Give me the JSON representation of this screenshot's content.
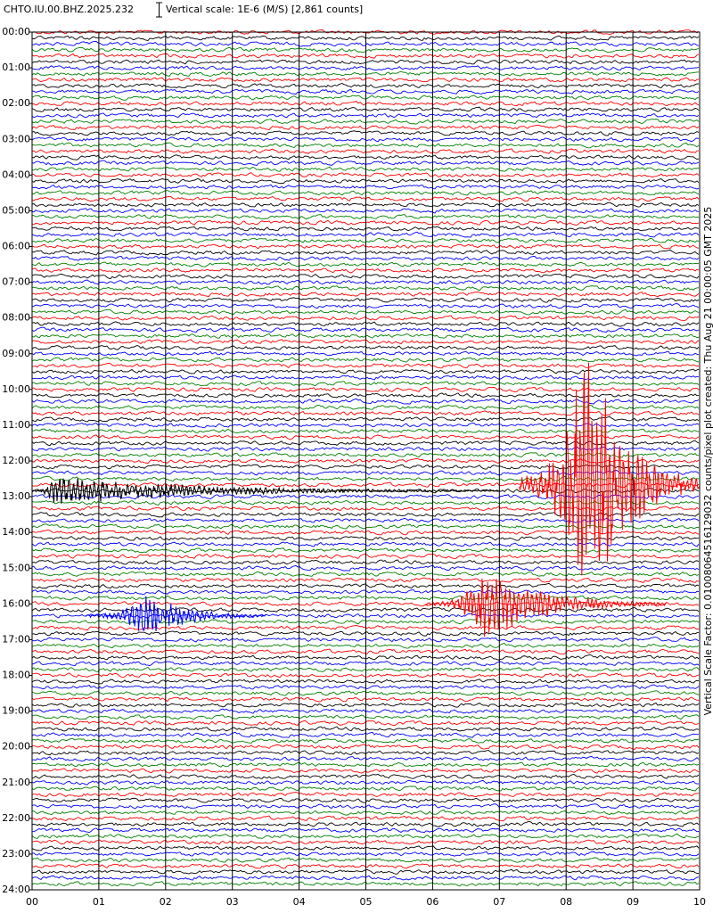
{
  "chart_data": {
    "type": "helicorder",
    "title": "CHTO.IU.00.BHZ.2025.232",
    "subtitle": "Vertical scale: 1E-6 (M/S) [2,861 counts]",
    "side_label": "Vertical Scale Factor: 0.01008064516129032 counts/pixel plot created: Thu Aug 21 00:00:05 GMT 2025",
    "xlim": [
      0,
      10
    ],
    "xticks": [
      {
        "value": 0,
        "label": "00"
      },
      {
        "value": 1,
        "label": "01"
      },
      {
        "value": 2,
        "label": "02"
      },
      {
        "value": 3,
        "label": "03"
      },
      {
        "value": 4,
        "label": "04"
      },
      {
        "value": 5,
        "label": "05"
      },
      {
        "value": 6,
        "label": "06"
      },
      {
        "value": 7,
        "label": "07"
      },
      {
        "value": 8,
        "label": "08"
      },
      {
        "value": 9,
        "label": "09"
      },
      {
        "value": 10,
        "label": "10"
      }
    ],
    "ylim": [
      0,
      24
    ],
    "yticks": [
      {
        "value": 0,
        "label": "00:00"
      },
      {
        "value": 1,
        "label": "01:00"
      },
      {
        "value": 2,
        "label": "02:00"
      },
      {
        "value": 3,
        "label": "03:00"
      },
      {
        "value": 4,
        "label": "04:00"
      },
      {
        "value": 5,
        "label": "05:00"
      },
      {
        "value": 6,
        "label": "06:00"
      },
      {
        "value": 7,
        "label": "07:00"
      },
      {
        "value": 8,
        "label": "08:00"
      },
      {
        "value": 9,
        "label": "09:00"
      },
      {
        "value": 10,
        "label": "10:00"
      },
      {
        "value": 11,
        "label": "11:00"
      },
      {
        "value": 12,
        "label": "12:00"
      },
      {
        "value": 13,
        "label": "13:00"
      },
      {
        "value": 14,
        "label": "14:00"
      },
      {
        "value": 15,
        "label": "15:00"
      },
      {
        "value": 16,
        "label": "16:00"
      },
      {
        "value": 17,
        "label": "17:00"
      },
      {
        "value": 18,
        "label": "18:00"
      },
      {
        "value": 19,
        "label": "19:00"
      },
      {
        "value": 20,
        "label": "20:00"
      },
      {
        "value": 21,
        "label": "21:00"
      },
      {
        "value": 22,
        "label": "22:00"
      },
      {
        "value": 23,
        "label": "23:00"
      },
      {
        "value": 24,
        "label": "24:00"
      }
    ],
    "colors": [
      "#ff0000",
      "#000000",
      "#0000ff",
      "#008000"
    ],
    "grid": true,
    "events": [
      {
        "row": 76,
        "start": 7.3,
        "peak": 8.3,
        "end": 10,
        "amplitude": 25
      },
      {
        "row": 77,
        "start": 0,
        "peak": 0.3,
        "end": 7,
        "amplitude": 2.5
      },
      {
        "row": 96,
        "start": 5.9,
        "peak": 6.8,
        "end": 9.5,
        "amplitude": 6
      },
      {
        "row": 98,
        "start": 0.8,
        "peak": 1.7,
        "end": 3.5,
        "amplitude": 4
      }
    ]
  }
}
